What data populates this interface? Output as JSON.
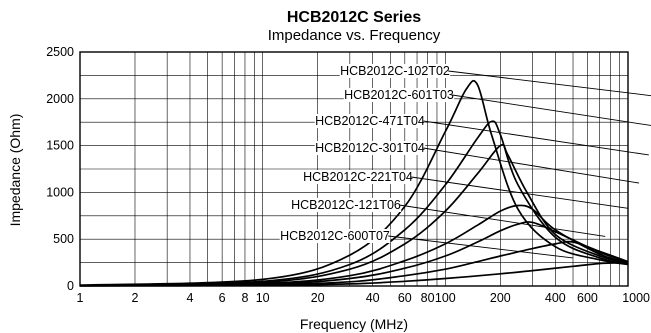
{
  "chart_data": {
    "type": "line",
    "title": "HCB2012C Series",
    "subtitle": "Impedance vs. Frequency",
    "xlabel": "Frequency (MHz)",
    "ylabel": "Impedance (Ohm)",
    "x_scale": "log",
    "xlim": [
      1,
      1000
    ],
    "ylim": [
      0,
      2500
    ],
    "grid": true,
    "x_ticks": [
      {
        "value": 1,
        "label": "1"
      },
      {
        "value": 2,
        "label": "2"
      },
      {
        "value": 4,
        "label": "4"
      },
      {
        "value": 6,
        "label": "6"
      },
      {
        "value": 8,
        "label": "8"
      },
      {
        "value": 10,
        "label": "10"
      },
      {
        "value": 20,
        "label": "20"
      },
      {
        "value": 40,
        "label": "40"
      },
      {
        "value": 60,
        "label": "60"
      },
      {
        "value": 80,
        "label": "80"
      },
      {
        "value": 100,
        "label": "100"
      },
      {
        "value": 200,
        "label": "200"
      },
      {
        "value": 400,
        "label": "400"
      },
      {
        "value": 600,
        "label": "600"
      },
      {
        "value": 1000,
        "label": "1000"
      }
    ],
    "y_ticks": [
      {
        "value": 0,
        "label": "0"
      },
      {
        "value": 500,
        "label": "500"
      },
      {
        "value": 1000,
        "label": "1000"
      },
      {
        "value": 1500,
        "label": "1500"
      },
      {
        "value": 2000,
        "label": "2000"
      },
      {
        "value": 2500,
        "label": "2500"
      }
    ],
    "series": [
      {
        "name": "HCB2012C-102T02",
        "x": [
          1,
          10,
          30,
          60,
          100,
          130,
          150,
          180,
          250,
          400,
          700,
          1000
        ],
        "y": [
          10,
          70,
          330,
          850,
          1650,
          2100,
          2150,
          1600,
          820,
          420,
          280,
          230
        ],
        "label_value": [
          1850,
          2000
        ]
      },
      {
        "name": "HCB2012C-601T03",
        "x": [
          1,
          10,
          30,
          60,
          100,
          150,
          180,
          200,
          250,
          400,
          700,
          1000
        ],
        "y": [
          7,
          50,
          230,
          600,
          1080,
          1580,
          1760,
          1620,
          1080,
          520,
          300,
          240
        ],
        "label_value": [
          1500,
          1700
        ]
      },
      {
        "name": "HCB2012C-471T04",
        "x": [
          1,
          10,
          30,
          60,
          100,
          150,
          200,
          220,
          280,
          400,
          700,
          1000
        ],
        "y": [
          5,
          40,
          180,
          450,
          800,
          1200,
          1500,
          1400,
          1000,
          550,
          320,
          250
        ],
        "label_value": [
          1300,
          1400
        ]
      },
      {
        "name": "HCB2012C-301T04",
        "x": [
          1,
          10,
          30,
          60,
          100,
          150,
          200,
          250,
          300,
          400,
          700,
          1000
        ],
        "y": [
          4,
          28,
          110,
          270,
          450,
          650,
          800,
          860,
          820,
          600,
          340,
          250
        ],
        "label_value": [
          1150,
          1100
        ]
      },
      {
        "name": "HCB2012C-221T04",
        "x": [
          1,
          10,
          30,
          60,
          100,
          150,
          200,
          250,
          300,
          400,
          700,
          1000
        ],
        "y": [
          3,
          20,
          80,
          190,
          320,
          470,
          590,
          660,
          680,
          580,
          360,
          260
        ],
        "label_value": [
          1000,
          830
        ]
      },
      {
        "name": "HCB2012C-121T06",
        "x": [
          1,
          10,
          30,
          60,
          100,
          150,
          200,
          300,
          400,
          500,
          700,
          1000
        ],
        "y": [
          2,
          12,
          45,
          110,
          180,
          260,
          320,
          400,
          450,
          470,
          370,
          260
        ],
        "label_value": [
          750,
          530
        ]
      },
      {
        "name": "HCB2012C-600T07",
        "x": [
          1,
          10,
          30,
          60,
          100,
          200,
          300,
          500,
          700,
          1000
        ],
        "y": [
          1,
          6,
          22,
          50,
          80,
          130,
          165,
          210,
          240,
          250
        ],
        "label_value": [
          500,
          300
        ]
      }
    ]
  }
}
